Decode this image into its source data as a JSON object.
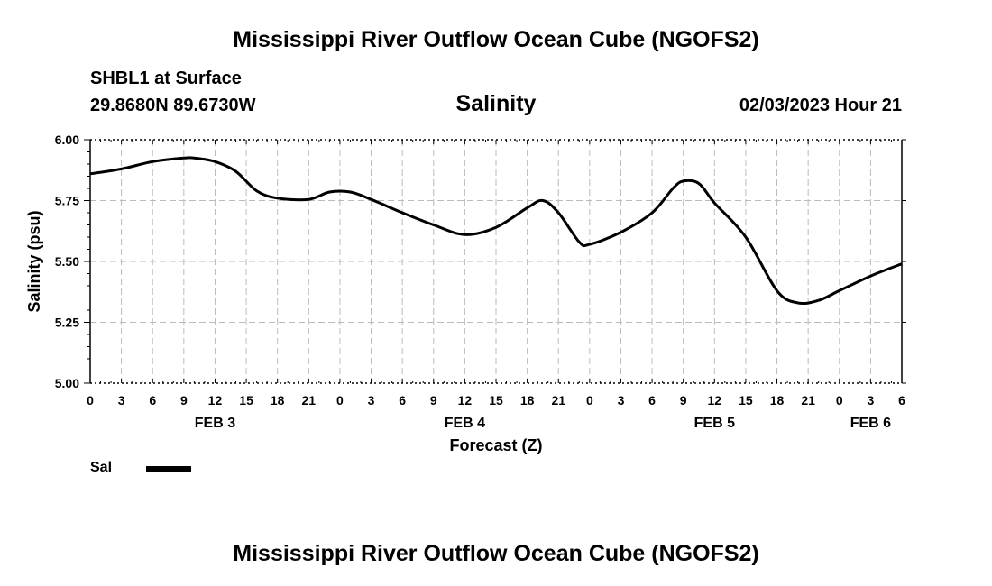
{
  "title": "Mississippi River Outflow Ocean Cube (NGOFS2)",
  "station": "SHBL1 at Surface",
  "coordinates": "29.8680N  89.6730W",
  "variable_title": "Salinity",
  "datetime": "02/03/2023 Hour 21",
  "footer_title": "Mississippi River Outflow Ocean Cube (NGOFS2)",
  "legend": {
    "label": "Sal"
  },
  "colors": {
    "line": "#000000",
    "grid": "#bbbbbb",
    "axis": "#000000"
  },
  "chart_data": {
    "type": "line",
    "title": "Salinity",
    "xlabel": "Forecast (Z)",
    "ylabel": "Salinity (psu)",
    "ylim": [
      5.0,
      6.0
    ],
    "yticks": [
      "5.00",
      "5.25",
      "5.50",
      "5.75",
      "6.00"
    ],
    "xlim_hours": [
      0,
      78
    ],
    "xtick_labels": [
      "0",
      "3",
      "6",
      "9",
      "12",
      "15",
      "18",
      "21",
      "0",
      "3",
      "6",
      "9",
      "12",
      "15",
      "18",
      "21",
      "0",
      "3",
      "6",
      "9",
      "12",
      "15",
      "18",
      "21",
      "0",
      "3",
      "6"
    ],
    "day_labels": [
      {
        "label": "FEB 3",
        "hour": 12
      },
      {
        "label": "FEB 4",
        "hour": 36
      },
      {
        "label": "FEB 5",
        "hour": 60
      },
      {
        "label": "FEB 6",
        "hour": 75
      }
    ],
    "grid": true,
    "series": [
      {
        "name": "Sal",
        "x_hours": [
          0,
          3,
          6,
          9,
          10,
          12,
          14,
          16,
          18,
          21,
          23,
          25,
          27,
          30,
          33,
          36,
          39,
          42,
          43.5,
          45,
          47,
          48,
          51,
          54,
          56,
          57,
          58.5,
          60,
          63,
          66,
          68,
          70,
          72,
          75,
          78
        ],
        "values": [
          5.86,
          5.88,
          5.91,
          5.925,
          5.925,
          5.91,
          5.87,
          5.79,
          5.76,
          5.755,
          5.785,
          5.785,
          5.755,
          5.7,
          5.65,
          5.61,
          5.64,
          5.72,
          5.75,
          5.7,
          5.58,
          5.57,
          5.62,
          5.7,
          5.8,
          5.83,
          5.82,
          5.74,
          5.6,
          5.38,
          5.33,
          5.34,
          5.38,
          5.44,
          5.49
        ]
      }
    ]
  }
}
